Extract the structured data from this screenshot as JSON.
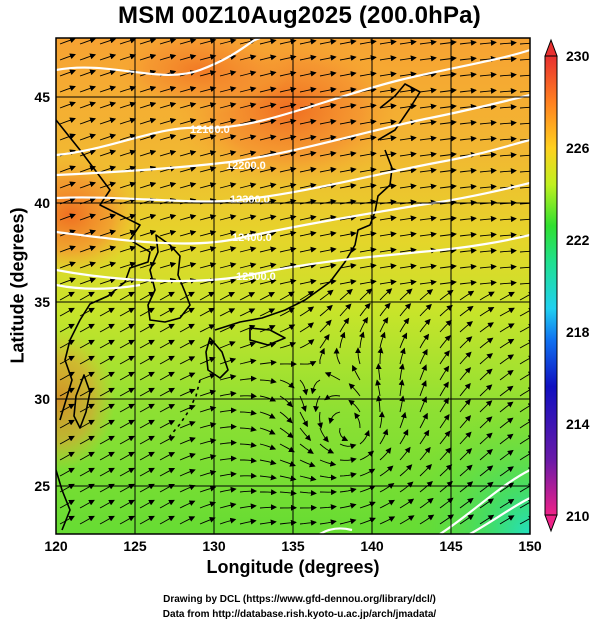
{
  "title": "MSM 00Z10Aug2025 (200.0hPa)",
  "xlabel": "Longitude (degrees)",
  "ylabel": "Latitude  (degrees)",
  "footer": {
    "line1": "Drawing by DCL (https://www.gfd-dennou.org/library/dcl/)",
    "line2": "Data from http://database.rish.kyoto-u.ac.jp/arch/jmadata/"
  },
  "map": {
    "lon_range": [
      120,
      150
    ],
    "lat_range": [
      22.4,
      47.6
    ],
    "x_ticks": [
      "120",
      "125",
      "130",
      "135",
      "140",
      "145",
      "150"
    ],
    "y_ticks": [
      "25",
      "30",
      "35",
      "40",
      "45"
    ],
    "contours": [
      {
        "label": "12100.0"
      },
      {
        "label": "12200.0"
      },
      {
        "label": "12300.0"
      },
      {
        "label": "12400.0"
      },
      {
        "label": "12500.0"
      }
    ],
    "colorbar": {
      "range": [
        210,
        230
      ],
      "tick_labels": [
        "230",
        "226",
        "222",
        "218",
        "214",
        "210"
      ],
      "colors": [
        "#ee2288",
        "#1010a0",
        "#1060f0",
        "#20d0f0",
        "#20e080",
        "#30e030",
        "#c0f020",
        "#ffd020",
        "#ff8020",
        "#e83030"
      ]
    },
    "colors": {
      "warm": "#f58a2a",
      "mid": "#e8dc2a",
      "cool": "#66dd33",
      "teal": "#22d8a8",
      "contour": "#ffffff",
      "grid": "#000000"
    }
  }
}
